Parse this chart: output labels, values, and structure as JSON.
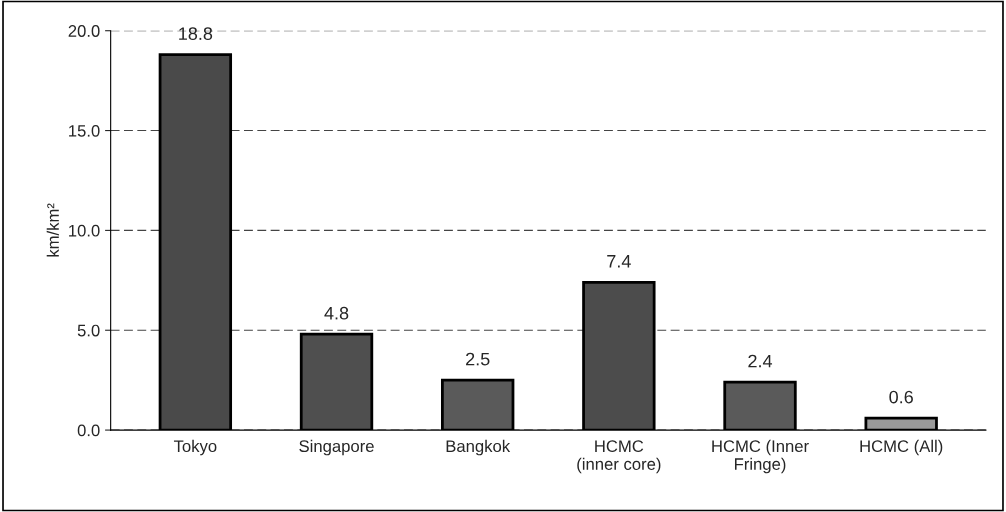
{
  "chart_data": {
    "type": "bar",
    "ylabel": "km/km²",
    "categories": [
      "Tokyo",
      "Singapore",
      "Bangkok",
      "HCMC\n(inner core)",
      "HCMC (Inner\nFringe)",
      "HCMC (All)"
    ],
    "values": [
      18.8,
      4.8,
      2.5,
      7.4,
      2.4,
      0.6
    ],
    "colors": [
      "#4a4a4a",
      "#4f4f4f",
      "#5a5a5a",
      "#4c4c4c",
      "#5a5a5a",
      "#9a9a9a"
    ],
    "ylim": [
      0,
      20
    ],
    "yticks": [
      {
        "value": 0,
        "label": "0.0"
      },
      {
        "value": 5,
        "label": "5.0"
      },
      {
        "value": 10,
        "label": "10.0"
      },
      {
        "value": 15,
        "label": "15.0"
      },
      {
        "value": 20,
        "label": "20.0"
      }
    ],
    "grid": "y",
    "data_labels": true,
    "legend": false
  }
}
